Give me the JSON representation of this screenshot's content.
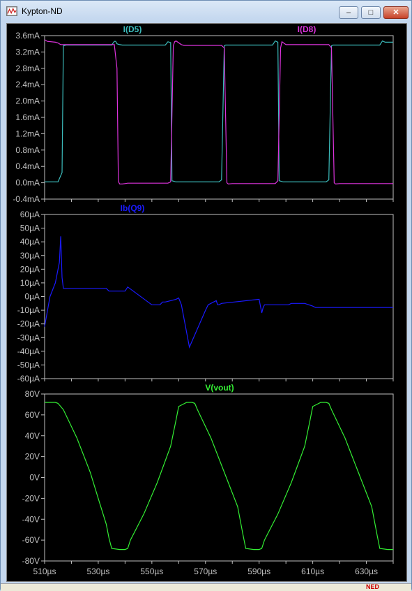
{
  "window": {
    "title": "Kypton-ND",
    "app_icon": "waveform-icon"
  },
  "titlebar_buttons": {
    "minimize": "–",
    "maximize": "□",
    "close": "✕"
  },
  "statusbar": {
    "text": "NED"
  },
  "colors": {
    "cyan": "#3cbcbc",
    "magenta": "#dd33dd",
    "blue": "#1a1aff",
    "red": "#ee1a1a",
    "green": "#33ee33",
    "axis": "#c0c0c0"
  },
  "chart_data": [
    {
      "type": "line",
      "title": "",
      "xlabel": "",
      "ylabel": "",
      "xlim": [
        510,
        640
      ],
      "ylim": [
        -0.4,
        3.6
      ],
      "y_ticks": [
        "3.6mA",
        "3.2mA",
        "2.8mA",
        "2.4mA",
        "2.0mA",
        "1.6mA",
        "1.2mA",
        "0.8mA",
        "0.4mA",
        "0.0mA",
        "-0.4mA"
      ],
      "series": [
        {
          "name": "I(D5)",
          "color": "#3cbcbc",
          "x": [
            510,
            515,
            516.5,
            517,
            518,
            535,
            536,
            536.5,
            537,
            538,
            539,
            555,
            556,
            557,
            557.5,
            559,
            575,
            576,
            577,
            577.5,
            579,
            595,
            596,
            597,
            597.5,
            599,
            615,
            616,
            617,
            617.5,
            619,
            635,
            636,
            637,
            637.5,
            639,
            640
          ],
          "y": [
            0.02,
            0.02,
            0.25,
            3.35,
            3.37,
            3.37,
            3.46,
            3.46,
            3.4,
            3.38,
            3.37,
            3.37,
            3.45,
            3.43,
            0.05,
            0.02,
            0.02,
            0.07,
            3.35,
            3.37,
            3.37,
            3.37,
            3.47,
            3.44,
            0.05,
            0.02,
            0.02,
            0.07,
            3.35,
            3.37,
            3.37,
            3.37,
            3.47,
            3.44,
            3.44,
            3.44,
            3.44
          ]
        },
        {
          "name": "I(D8)",
          "color": "#dd33dd",
          "x": [
            510,
            511,
            514,
            515,
            516,
            536,
            537,
            537.5,
            538,
            539,
            540,
            541,
            556,
            557,
            558,
            558.5,
            559,
            561,
            562,
            576,
            577,
            578,
            578.5,
            580,
            596,
            597,
            598,
            598.5,
            600,
            616,
            617,
            618,
            618.5,
            620,
            636,
            637,
            638,
            638.5,
            639,
            640
          ],
          "y": [
            3.5,
            3.46,
            3.44,
            3.42,
            3.38,
            3.38,
            2.8,
            0.03,
            -0.03,
            -0.03,
            -0.02,
            -0.01,
            -0.01,
            0.02,
            3.35,
            3.45,
            3.47,
            3.38,
            3.36,
            3.36,
            3.3,
            0.0,
            -0.03,
            -0.02,
            -0.02,
            0.05,
            3.3,
            3.45,
            3.38,
            3.38,
            3.3,
            0.0,
            -0.03,
            -0.02,
            -0.02,
            -0.02,
            -0.02,
            -0.02,
            -0.02,
            -0.02
          ]
        }
      ]
    },
    {
      "type": "line",
      "title": "",
      "xlabel": "",
      "ylabel": "",
      "xlim": [
        510,
        640
      ],
      "ylim": [
        -60,
        60
      ],
      "y_ticks": [
        "60µA",
        "50µA",
        "40µA",
        "30µA",
        "20µA",
        "10µA",
        "0µA",
        "-10µA",
        "-20µA",
        "-30µA",
        "-40µA",
        "-50µA",
        "-60µA"
      ],
      "series": [
        {
          "name": "Ib(Q9)",
          "color": "#1a1aff",
          "x": [
            510,
            512,
            514,
            515.5,
            516,
            516.5,
            517,
            517.5,
            520,
            532,
            533,
            534,
            535,
            536,
            537,
            538,
            539,
            540,
            541,
            550,
            551,
            552,
            553,
            554,
            555,
            557,
            559,
            560,
            561,
            564,
            570,
            571,
            572,
            573,
            574,
            574.5,
            575,
            576,
            590,
            591,
            591.5,
            592,
            592.5,
            593,
            600,
            601,
            602,
            603,
            604,
            605,
            607,
            610,
            611,
            612,
            613,
            614,
            614.5,
            615,
            616,
            630,
            640
          ],
          "y": [
            -22,
            0,
            10,
            25,
            44,
            14,
            6,
            6,
            6,
            6,
            6,
            4,
            4,
            4,
            4,
            4,
            4,
            4,
            7,
            -6,
            -6,
            -6,
            -6,
            -4,
            -4,
            -3,
            -2,
            -1,
            -6,
            -37,
            -10,
            -6,
            -5,
            -4,
            -3,
            -6,
            -6,
            -5,
            -2,
            -12,
            -8,
            -6,
            -6,
            -6,
            -6,
            -6,
            -5,
            -5,
            -5,
            -5,
            -5,
            -7,
            -8,
            -8,
            -8,
            -8,
            -8,
            -8,
            -8,
            -8,
            -8
          ],
          "comment_x": "unused"
        }
      ]
    },
    {
      "type": "line",
      "title": "",
      "xlabel": "",
      "ylabel": "",
      "xlim": [
        510,
        640
      ],
      "ylim": [
        -80,
        80
      ],
      "x_ticks": [
        "510µs",
        "530µs",
        "550µs",
        "570µs",
        "590µs",
        "610µs",
        "630µs"
      ],
      "y_ticks": [
        "80V",
        "60V",
        "40V",
        "20V",
        "0V",
        "-20V",
        "-40V",
        "-60V",
        "-80V"
      ],
      "series": [
        {
          "name": "V(vout)",
          "color": "#33ee33",
          "x": [
            510,
            514,
            515,
            517,
            522,
            527,
            530,
            533,
            534,
            535,
            538,
            540,
            541,
            542,
            547,
            552,
            557,
            559,
            560,
            563,
            565,
            566,
            567,
            572,
            577,
            582,
            584,
            585,
            588,
            590,
            591,
            592,
            597,
            602,
            607,
            609,
            610,
            613,
            615,
            616,
            617,
            622,
            627,
            632,
            634,
            635,
            638,
            640
          ],
          "y": [
            72,
            72,
            71,
            65,
            38,
            5,
            -20,
            -45,
            -58,
            -68,
            -69,
            -69,
            -68,
            -60,
            -35,
            -5,
            30,
            55,
            68,
            72,
            72,
            71,
            65,
            38,
            5,
            -28,
            -55,
            -68,
            -69,
            -69,
            -68,
            -60,
            -35,
            -5,
            30,
            55,
            68,
            72,
            72,
            71,
            65,
            38,
            5,
            -28,
            -55,
            -68,
            -69,
            -69
          ]
        }
      ]
    }
  ]
}
